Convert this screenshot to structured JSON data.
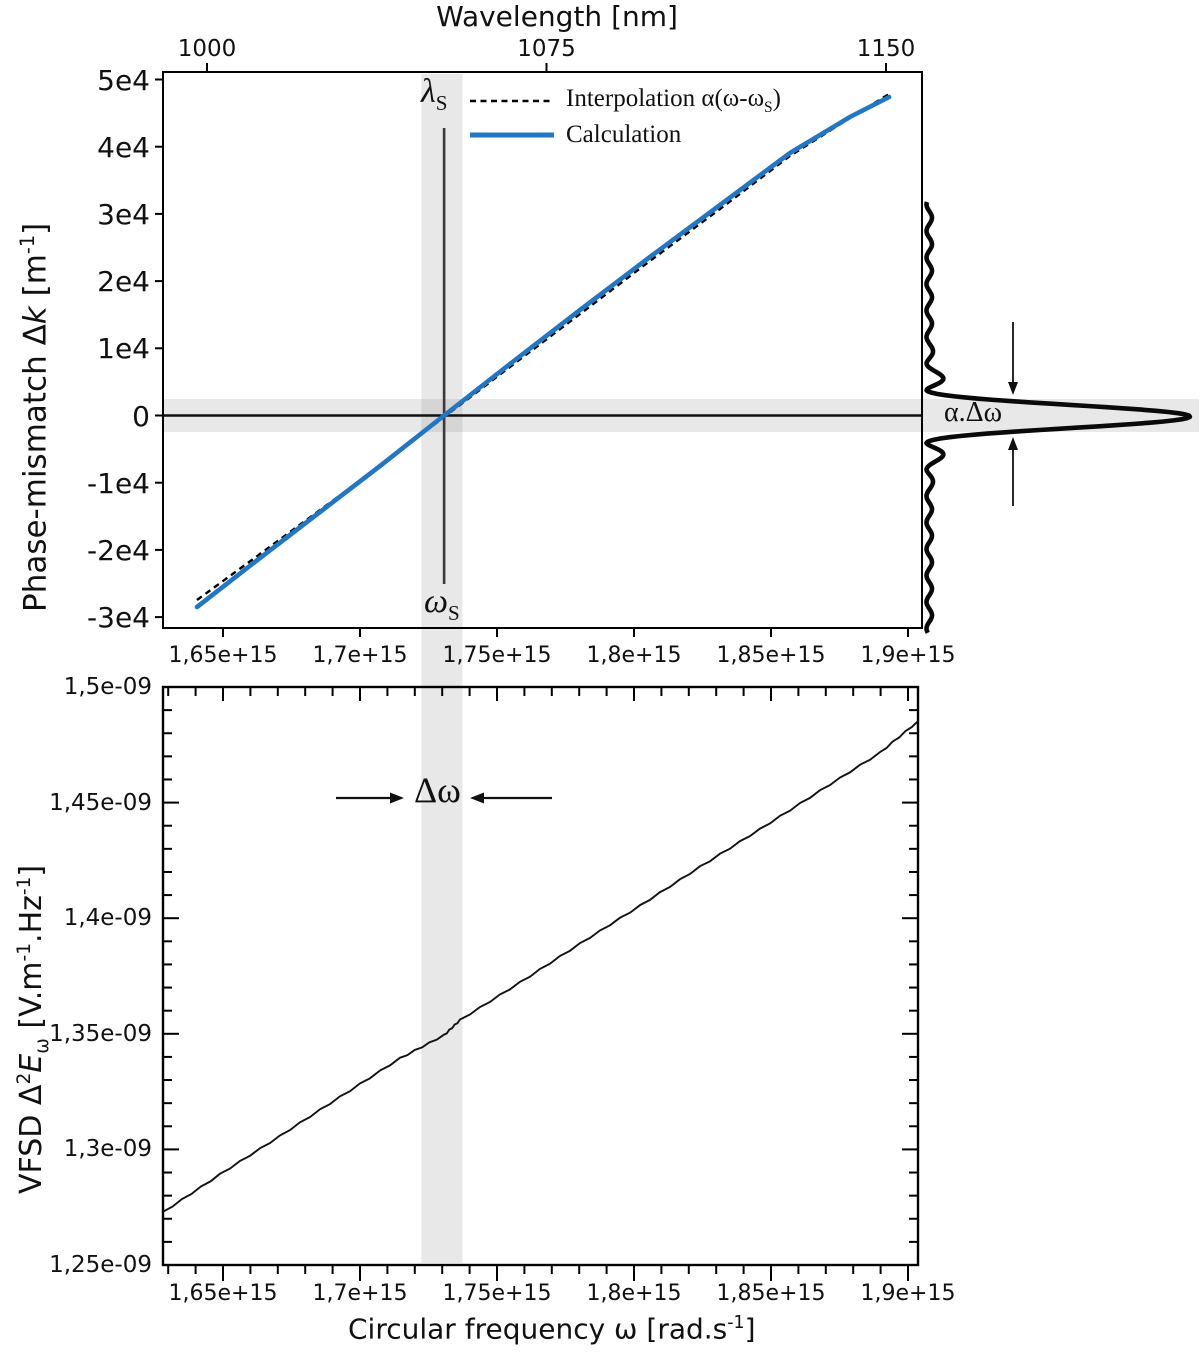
{
  "figure": {
    "background": "#ffffff",
    "accent_blue": "#2277c4",
    "band_gray": "rgba(128,128,128,0.18)"
  },
  "chart_data": [
    {
      "type": "line",
      "title": "",
      "x_axis_top": {
        "label": "Wavelength [nm]",
        "tick_labels": [
          "1000",
          "1075",
          "1150"
        ],
        "tick_values": [
          1000,
          1075,
          1150
        ],
        "range_nm": [
          980,
          1165
        ]
      },
      "x_axis_bottom": {
        "label": "Circular frequency ω [rad.s⁻¹]",
        "tick_labels": [
          "1,65e+15",
          "1,7e+15",
          "1,75e+15",
          "1,8e+15",
          "1,85e+15",
          "1,9e+15"
        ],
        "tick_values": [
          1650000000000000.0,
          1700000000000000.0,
          1750000000000000.0,
          1800000000000000.0,
          1850000000000000.0,
          1900000000000000.0
        ],
        "range": [
          1628000000000000.0,
          1905000000000000.0
        ]
      },
      "y_axis": {
        "label": "Phase-mismatch Δk [m⁻¹]",
        "label_parts": {
          "pre": "Phase-mismatch Δ",
          "var": "k",
          "mid": " [m",
          "sup": "-1",
          "post": "]"
        },
        "tick_labels": [
          "5e4",
          "4e4",
          "3e4",
          "2e4",
          "1e4",
          "0",
          "-1e4",
          "-2e4",
          "-3e4"
        ],
        "tick_values": [
          50000,
          40000,
          30000,
          20000,
          10000,
          0,
          -10000,
          -20000,
          -30000
        ],
        "range": [
          -31700,
          51100
        ],
        "grid": false
      },
      "legend": {
        "position": "top-center-inside",
        "items": [
          {
            "label_pre": "Interpolation α(ω-ω",
            "label_sub": "S",
            "label_post": ")",
            "style": "dashed",
            "color": "#000000"
          },
          {
            "label_pre": "Calculation",
            "label_sub": "",
            "label_post": "",
            "style": "solid",
            "color": "#2277c4"
          }
        ]
      },
      "series": [
        {
          "name": "Interpolation α(ω-ωS)",
          "style": "dashed",
          "color": "#000000",
          "x": [
            1640500000000000.0,
            1663500000000000.0,
            1685400000000000.0,
            1707300000000000.0,
            1730700000000000.0,
            1754700000000000.0,
            1780300000000000.0,
            1805800000000000.0,
            1831400000000000.0,
            1856900000000000.0,
            1878800000000000.0,
            1893100000000000.0
          ],
          "y": [
            -27460,
            -20610,
            -14060,
            -7510,
            -220,
            7220,
            15100,
            22990,
            30730,
            38620,
            44270,
            47840
          ]
        },
        {
          "name": "Calculation",
          "style": "solid",
          "color": "#2277c4",
          "x": [
            1640500000000000.0,
            1663500000000000.0,
            1685400000000000.0,
            1707300000000000.0,
            1730700000000000.0,
            1754700000000000.0,
            1780300000000000.0,
            1805800000000000.0,
            1831400000000000.0,
            1856900000000000.0,
            1878800000000000.0,
            1893100000000000.0
          ],
          "y": [
            -28500,
            -21210,
            -14360,
            -7510,
            0,
            7660,
            15700,
            23590,
            31320,
            39060,
            44420,
            47390
          ]
        }
      ],
      "annotations": {
        "lambda_s": {
          "base": "λ",
          "sub": "S"
        },
        "omega_s": {
          "base": "ω",
          "sub": "S"
        },
        "alpha_delta_omega": "α.Δω",
        "signal_vline_omega": 1730700000000000.0,
        "zero_hline_k": 0,
        "vband_omega": [
          1722400000000000.0,
          1737400000000000.0
        ],
        "hband_k": [
          -2450,
          2450
        ],
        "side_peak": {
          "shape": "sinc2",
          "center_k": 0,
          "orientation": "pointing-right",
          "width_label": "α.Δω"
        }
      }
    },
    {
      "type": "line",
      "title": "",
      "x_axis": {
        "label": "Circular frequency ω [rad.s⁻¹]",
        "label_parts": {
          "pre": "Circular frequency ω [rad.s",
          "sup": "-1",
          "post": "]"
        },
        "tick_labels": [
          "1,65e+15",
          "1,7e+15",
          "1,75e+15",
          "1,8e+15",
          "1,85e+15",
          "1,9e+15"
        ],
        "tick_values": [
          1650000000000000.0,
          1700000000000000.0,
          1750000000000000.0,
          1800000000000000.0,
          1850000000000000.0,
          1900000000000000.0
        ],
        "minor_tick_step": 10000000000000.0,
        "range": [
          1628000000000000.0,
          1904000000000000.0
        ]
      },
      "y_axis": {
        "label": "VFSD Δ²Eω [V.m⁻¹.Hz⁻¹]",
        "label_parts": {
          "pre": "VFSD Δ",
          "sup1": "2",
          "var": "E",
          "sub": "ω",
          "mid": " [V.m",
          "sup2": "-1",
          "mid2": ".Hz",
          "sup3": "-1",
          "post": "]"
        },
        "tick_labels": [
          "1,5e-09",
          "1,45e-09",
          "1,4e-09",
          "1,35e-09",
          "1,3e-09",
          "1,25e-09"
        ],
        "tick_values": [
          1.5e-09,
          1.45e-09,
          1.4e-09,
          1.35e-09,
          1.3e-09,
          1.25e-09
        ],
        "minor_tick_step": 1e-11,
        "range": [
          1.25e-09,
          1.5e-09
        ],
        "grid": false
      },
      "series": [
        {
          "name": "VFSD",
          "style": "solid",
          "color": "#111111",
          "x": [
            1628100000000000.0,
            1648900000000000.0,
            1670800000000000.0,
            1692700000000000.0,
            1714600000000000.0,
            1730700000000000.0,
            1736500000000000.0,
            1758400000000000.0,
            1780300000000000.0,
            1802200000000000.0,
            1824100000000000.0,
            1846000000000000.0,
            1867900000000000.0,
            1889800000000000.0,
            1903700000000000.0
          ],
          "y": [
            1.2729e-09,
            1.2893e-09,
            1.3059e-09,
            1.3228e-09,
            1.3395e-09,
            1.3495e-09,
            1.356e-09,
            1.3723e-09,
            1.3891e-09,
            1.4055e-09,
            1.4223e-09,
            1.4386e-09,
            1.4552e-09,
            1.4717e-09,
            1.4853e-09
          ]
        }
      ],
      "annotations": {
        "delta_omega": "Δω",
        "vband_omega": [
          1722400000000000.0,
          1737400000000000.0
        ]
      }
    }
  ]
}
